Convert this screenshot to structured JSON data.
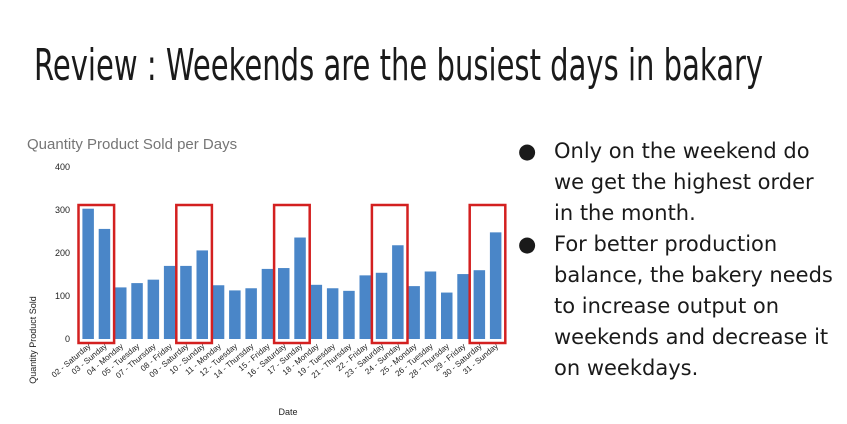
{
  "slide": {
    "title": "Review : Weekends are the busiest days in bakary",
    "bullet_glyph": "●",
    "bullets": [
      "Only on the weekend do we get the highest order in the month.",
      "For better production balance, the bakery needs to increase output on weekends and decrease it on weekdays."
    ]
  },
  "chart_data": {
    "type": "bar",
    "title": "Quantity Product Sold per Days",
    "xlabel": "Date",
    "ylabel": "Quantity Product Sold",
    "ylim": [
      0,
      400
    ],
    "yticks": [
      0,
      100,
      200,
      300,
      400
    ],
    "grid": false,
    "bar_color": "#4a86c8",
    "highlight_color": "#d32020",
    "categories": [
      "02 - Saturday",
      "03 - Sunday",
      "04 - Monday",
      "05 - Tuesday",
      "07 - Thursday",
      "08 - Friday",
      "09 - Saturday",
      "10 - Sunday",
      "11 - Monday",
      "12 - Tuesday",
      "14 - Thursday",
      "15 - Friday",
      "16 - Saturday",
      "17 - Sunday",
      "18 - Monday",
      "19 - Tuesday",
      "21 - Thursday",
      "22 - Friday",
      "23 - Saturday",
      "24 - Sunday",
      "25 - Monday",
      "26 - Tuesday",
      "28 - Thursday",
      "29 - Friday",
      "30 - Saturday",
      "31 - Sunday"
    ],
    "values": [
      303,
      256,
      120,
      130,
      138,
      170,
      170,
      206,
      125,
      113,
      118,
      163,
      165,
      236,
      126,
      118,
      112,
      148,
      154,
      218,
      123,
      157,
      108,
      151,
      160,
      248
    ],
    "highlight_groups": [
      [
        0,
        1
      ],
      [
        6,
        7
      ],
      [
        12,
        13
      ],
      [
        18,
        19
      ],
      [
        24,
        25
      ]
    ]
  }
}
